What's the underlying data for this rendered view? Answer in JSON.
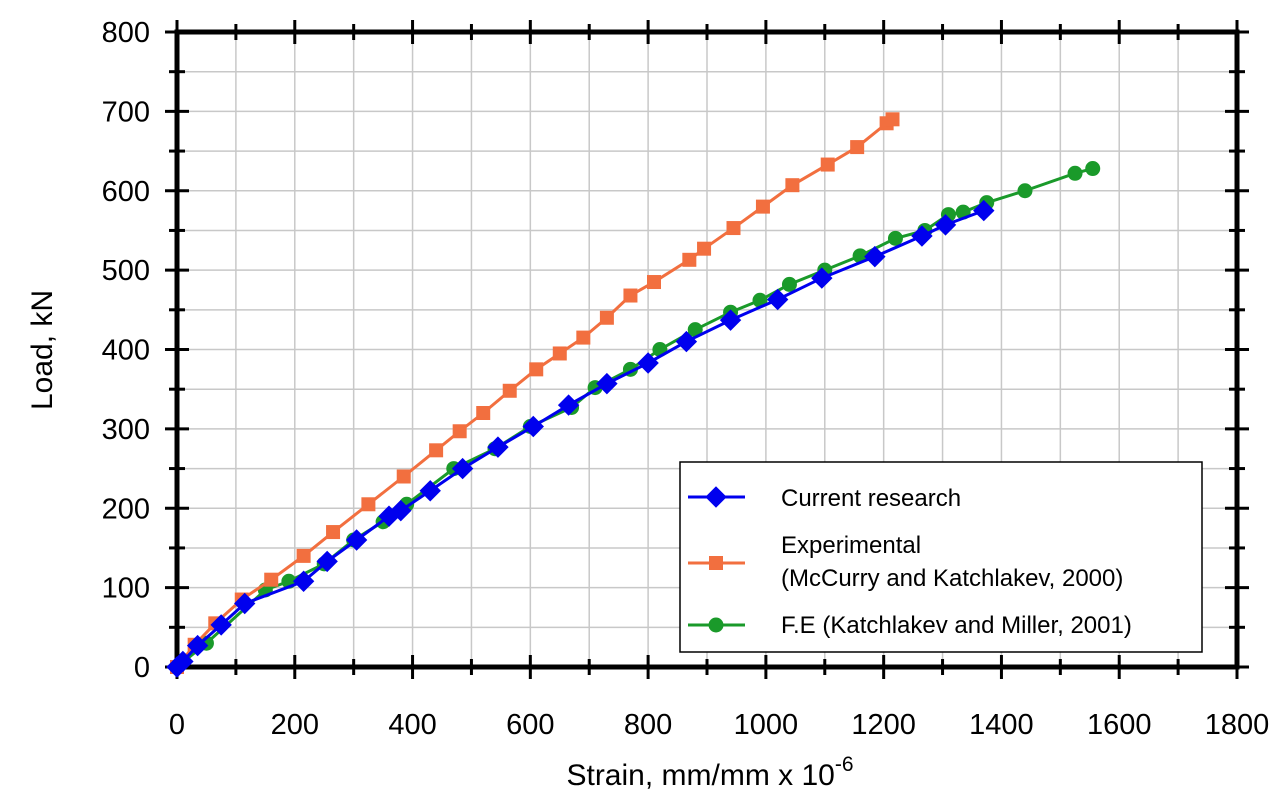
{
  "chart_data": {
    "type": "line",
    "xlabel": "Strain, mm/mm x 10",
    "xlabel_exponent": "-6",
    "ylabel": "Load, kN",
    "xlim": [
      0,
      1800
    ],
    "ylim": [
      0,
      800
    ],
    "xticks": [
      "0",
      "200",
      "400",
      "600",
      "800",
      "1000",
      "1200",
      "1400",
      "1600",
      "1800"
    ],
    "yticks": [
      "0",
      "100",
      "200",
      "300",
      "400",
      "500",
      "600",
      "700",
      "800"
    ],
    "grid": true,
    "legend_position": "bottom-right",
    "series": [
      {
        "name": "Current research",
        "color": "#0000ee",
        "marker": "diamond",
        "x": [
          0,
          10,
          35,
          75,
          115,
          215,
          255,
          305,
          360,
          380,
          430,
          485,
          545,
          605,
          665,
          730,
          800,
          865,
          940,
          1020,
          1095,
          1185,
          1265,
          1305,
          1370
        ],
        "y": [
          0,
          7,
          27,
          53,
          80,
          108,
          133,
          160,
          190,
          197,
          222,
          250,
          277,
          303,
          330,
          357,
          383,
          410,
          437,
          463,
          490,
          517,
          543,
          557,
          575
        ]
      },
      {
        "name": "Experimental",
        "name_line2": "(McCurry and Katchlakev, 2000)",
        "color": "#f26f3f",
        "marker": "square",
        "x": [
          0,
          30,
          65,
          110,
          160,
          215,
          265,
          325,
          385,
          440,
          480,
          520,
          565,
          610,
          650,
          690,
          730,
          770,
          810,
          870,
          895,
          945,
          995,
          1045,
          1105,
          1155,
          1205,
          1215
        ],
        "y": [
          0,
          28,
          55,
          85,
          110,
          140,
          170,
          205,
          240,
          273,
          297,
          320,
          348,
          375,
          395,
          415,
          440,
          468,
          485,
          513,
          527,
          553,
          580,
          607,
          633,
          655,
          685,
          690
        ]
      },
      {
        "name": "F.E (Katchlakev and Miller, 2001)",
        "color": "#1a9a2a",
        "marker": "circle",
        "x": [
          0,
          50,
          150,
          190,
          250,
          300,
          350,
          390,
          470,
          540,
          600,
          670,
          710,
          770,
          820,
          880,
          940,
          990,
          1040,
          1100,
          1160,
          1220,
          1270,
          1310,
          1335,
          1375,
          1440,
          1525,
          1555
        ],
        "y": [
          0,
          30,
          97,
          108,
          130,
          160,
          183,
          205,
          250,
          275,
          303,
          327,
          352,
          375,
          400,
          425,
          447,
          462,
          482,
          500,
          518,
          540,
          550,
          570,
          573,
          585,
          600,
          622,
          628
        ]
      }
    ]
  }
}
